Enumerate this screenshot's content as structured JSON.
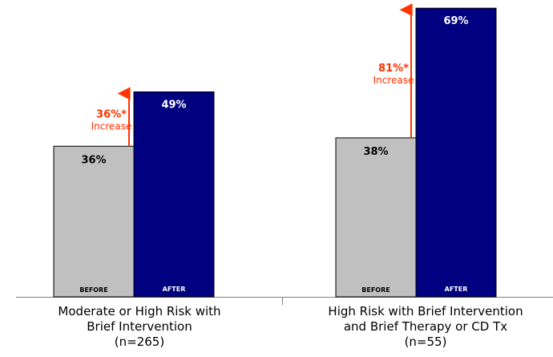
{
  "chart_data": {
    "type": "bar",
    "title": "",
    "xlabel": "",
    "ylabel": "",
    "ylim": [
      0,
      70
    ],
    "grid": false,
    "legend": "none",
    "series_labels": [
      "BEFORE",
      "AFTER"
    ],
    "groups": [
      {
        "category_lines": [
          "Moderate or High Risk with",
          "Brief Intervention",
          "(n=265)"
        ],
        "before": 36,
        "after": 49,
        "before_label": "36%",
        "after_label": "49%",
        "increase_pct": "36%*",
        "increase_text": "Increase"
      },
      {
        "category_lines": [
          "High Risk with Brief Intervention",
          "and Brief Therapy or CD Tx",
          "(n=55)"
        ],
        "before": 38,
        "after": 69,
        "before_label": "38%",
        "after_label": "69%",
        "increase_pct": "81%*",
        "increase_text": "Increase"
      }
    ],
    "colors": {
      "before": "#c0c0c0",
      "after": "#000080",
      "arrow": "#ff3300",
      "increase_text": "#ff3300"
    }
  }
}
